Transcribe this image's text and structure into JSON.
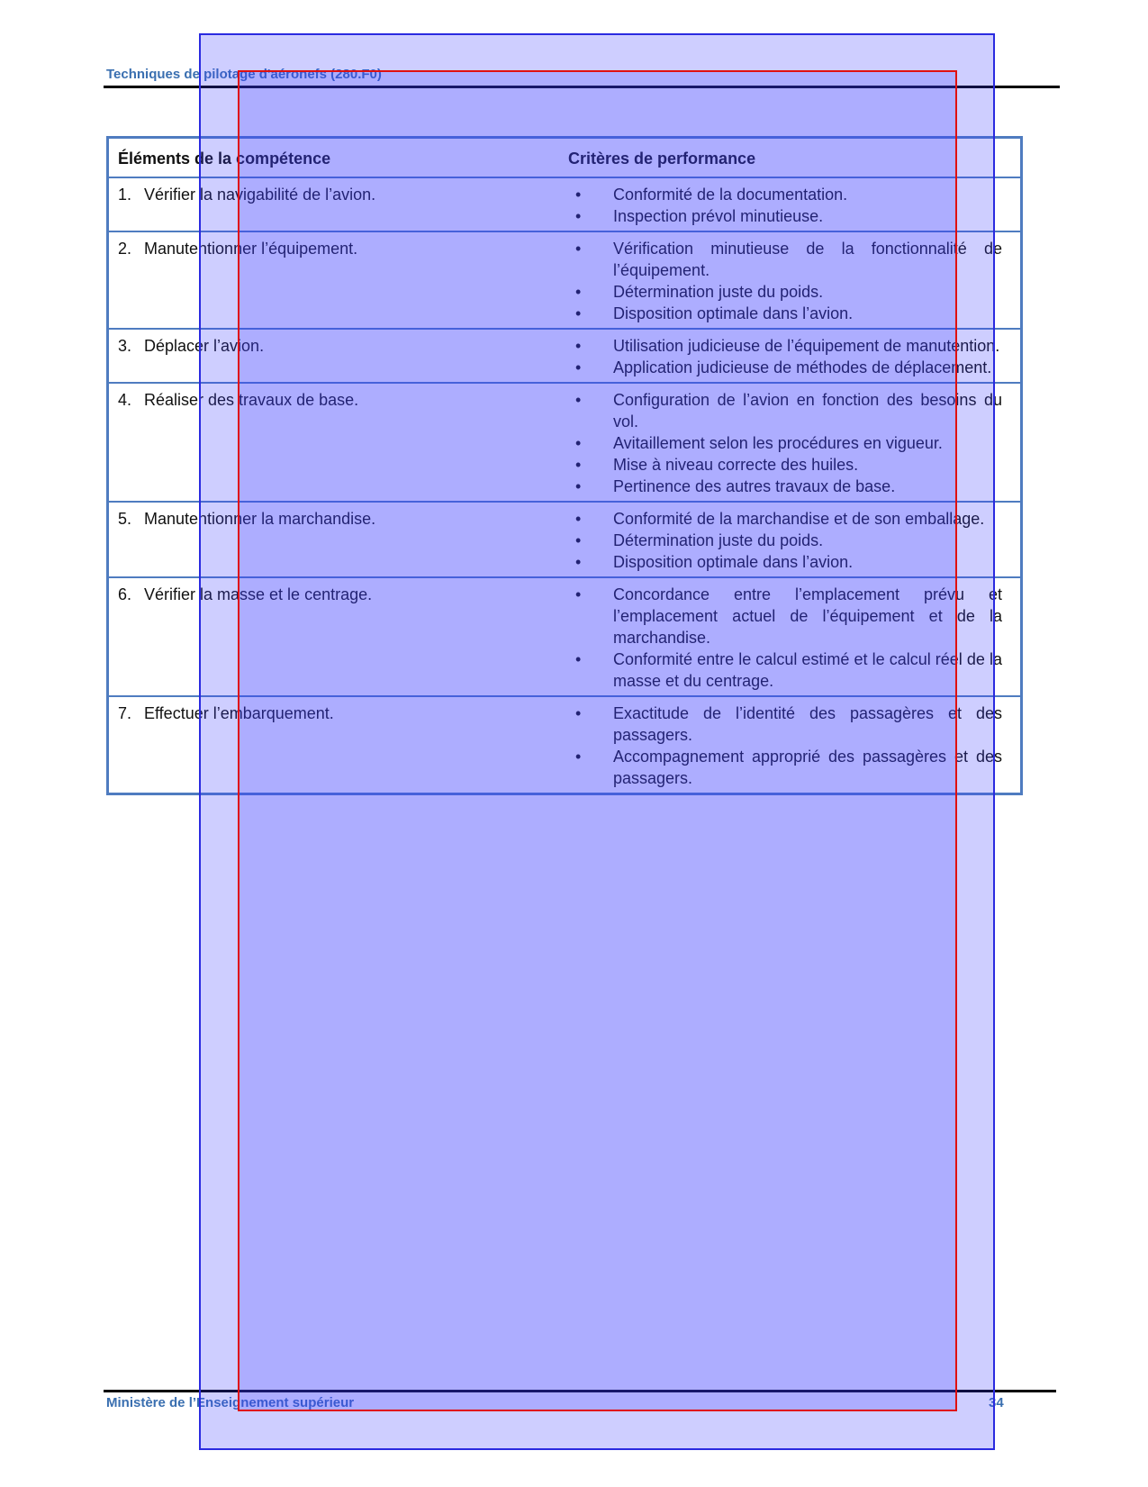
{
  "header": {
    "title": "Techniques de pilotage d'aéronefs (280.F0)"
  },
  "table": {
    "headers": [
      "Éléments de la compétence",
      "Critères de performance"
    ],
    "rows": [
      {
        "number": "1.",
        "element": "Vérifier la navigabilité de l’avion.",
        "criteria": [
          "Conformité de la documentation.",
          "Inspection prévol minutieuse."
        ]
      },
      {
        "number": "2.",
        "element": "Manutentionner l’équipement.",
        "criteria": [
          "Vérification minutieuse de la fonctionnalité de l’équipement.",
          "Détermination juste du poids.",
          "Disposition optimale dans l’avion."
        ]
      },
      {
        "number": "3.",
        "element": "Déplacer l’avion.",
        "criteria": [
          "Utilisation judicieuse de l’équipement de manutention.",
          "Application judicieuse de méthodes de déplacement."
        ]
      },
      {
        "number": "4.",
        "element": "Réaliser des travaux de base.",
        "criteria": [
          "Configuration de l’avion en fonction des besoins du vol.",
          "Avitaillement selon les procédures en vigueur.",
          "Mise à niveau correcte des huiles.",
          "Pertinence des autres travaux de base."
        ]
      },
      {
        "number": "5.",
        "element": "Manutentionner la marchandise.",
        "criteria": [
          "Conformité de la marchandise et de son emballage.",
          "Détermination juste du poids.",
          "Disposition optimale dans l’avion."
        ]
      },
      {
        "number": "6.",
        "element": "Vérifier la masse et le centrage.",
        "criteria": [
          "Concordance entre l’emplacement prévu et l’emplacement actuel de l’équipement et de la marchandise.",
          "Conformité entre le calcul estimé et le calcul réel de la masse et du centrage."
        ]
      },
      {
        "number": "7.",
        "element": "Effectuer l’embarquement.",
        "criteria": [
          "Exactitude de l’identité des passagères et des passagers.",
          "Accompagnement approprié des passagères et des passagers."
        ]
      }
    ]
  },
  "footer": {
    "left": "Ministère de l’Enseignement supérieur",
    "page": "34"
  }
}
